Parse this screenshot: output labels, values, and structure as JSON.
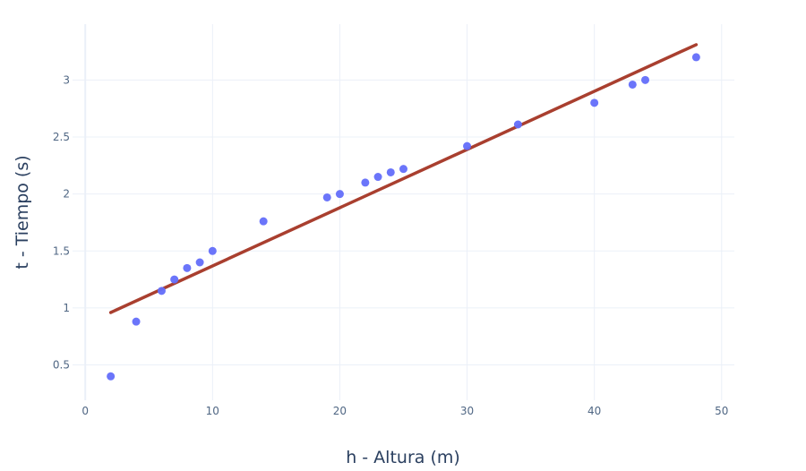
{
  "chart_data": {
    "type": "scatter",
    "title": "",
    "xlabel": "h - Altura (m)",
    "ylabel": "t - Tiempo (s)",
    "xlim": [
      -1,
      51
    ],
    "ylim": [
      0.19,
      3.49
    ],
    "xticks": [
      0,
      10,
      20,
      30,
      40,
      50
    ],
    "yticks": [
      0.5,
      1,
      1.5,
      2,
      2.5,
      3
    ],
    "grid": true,
    "legend": "none",
    "series": [
      {
        "type": "scatter",
        "color": "#636efa",
        "x": [
          2,
          4,
          6,
          7,
          8,
          9,
          10,
          14,
          19,
          20,
          22,
          23,
          24,
          25,
          30,
          34,
          40,
          43,
          44,
          48
        ],
        "y": [
          0.4,
          0.88,
          1.15,
          1.25,
          1.35,
          1.4,
          1.5,
          1.76,
          1.97,
          2.0,
          2.1,
          2.15,
          2.19,
          2.22,
          2.42,
          2.61,
          2.8,
          2.96,
          3.0,
          3.2
        ]
      },
      {
        "type": "line",
        "color": "#a93f2f",
        "x": [
          2,
          48
        ],
        "y": [
          0.96,
          3.31
        ]
      }
    ]
  }
}
